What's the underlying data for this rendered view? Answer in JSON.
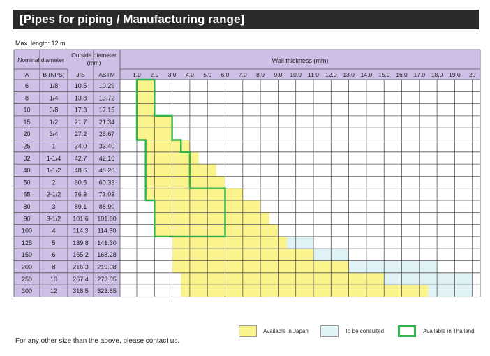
{
  "page": {
    "title": "[Pipes for piping / Manufacturing range]",
    "max_length": "Max. length: 12 m",
    "footnote": "For any other size than the above, please contact us."
  },
  "table": {
    "headers": {
      "nominal_diameter": "Nominal diameter",
      "outside_diameter_line1": "Outside diameter",
      "outside_diameter_line2": "(mm)",
      "wall_thickness": "Wall thickness (mm)",
      "col_a": "A",
      "col_b": "B (NPS)",
      "col_jis": "JIS",
      "col_astm": "ASTM"
    },
    "thickness_ticks": [
      "1.0",
      "2.0",
      "3.0",
      "4.0",
      "5.0",
      "6.0",
      "7.0",
      "8.0",
      "9.0",
      "10.0",
      "11.0",
      "12.0",
      "13.0",
      "14.0",
      "15.0",
      "16.0",
      "17.0",
      "18.0",
      "19.0",
      "20"
    ],
    "rows": [
      {
        "a": "6",
        "b": "1/8",
        "jis": "10.5",
        "astm": "10.29",
        "japan": [
          1.0,
          2.0
        ],
        "consult": null,
        "thailand": [
          1.0,
          2.0
        ]
      },
      {
        "a": "8",
        "b": "1/4",
        "jis": "13.8",
        "astm": "13.72",
        "japan": [
          1.0,
          2.0
        ],
        "consult": null,
        "thailand": [
          1.0,
          2.0
        ]
      },
      {
        "a": "10",
        "b": "3/8",
        "jis": "17.3",
        "astm": "17.15",
        "japan": [
          1.0,
          2.0
        ],
        "consult": null,
        "thailand": [
          1.0,
          2.0
        ]
      },
      {
        "a": "15",
        "b": "1/2",
        "jis": "21.7",
        "astm": "21.34",
        "japan": [
          1.0,
          3.0
        ],
        "consult": null,
        "thailand": [
          1.0,
          3.0
        ]
      },
      {
        "a": "20",
        "b": "3/4",
        "jis": "27.2",
        "astm": "26.67",
        "japan": [
          1.0,
          3.0
        ],
        "consult": null,
        "thailand": [
          1.0,
          3.0
        ]
      },
      {
        "a": "25",
        "b": "1",
        "jis": "34.0",
        "astm": "33.40",
        "japan": [
          1.5,
          4.0
        ],
        "consult": null,
        "thailand": [
          1.5,
          3.5
        ]
      },
      {
        "a": "32",
        "b": "1-1/4",
        "jis": "42.7",
        "astm": "42.16",
        "japan": [
          1.5,
          4.5
        ],
        "consult": null,
        "thailand": [
          1.5,
          4.0
        ]
      },
      {
        "a": "40",
        "b": "1-1/2",
        "jis": "48.6",
        "astm": "48.26",
        "japan": [
          1.5,
          5.5
        ],
        "consult": null,
        "thailand": [
          1.5,
          4.0
        ]
      },
      {
        "a": "50",
        "b": "2",
        "jis": "60.5",
        "astm": "60.33",
        "japan": [
          1.5,
          6.0
        ],
        "consult": null,
        "thailand": [
          1.5,
          4.0
        ]
      },
      {
        "a": "65",
        "b": "2-1/2",
        "jis": "76.3",
        "astm": "73.03",
        "japan": [
          1.5,
          7.0
        ],
        "consult": null,
        "thailand": [
          1.5,
          6.0
        ]
      },
      {
        "a": "80",
        "b": "3",
        "jis": "89.1",
        "astm": "88.90",
        "japan": [
          2.0,
          8.0
        ],
        "consult": null,
        "thailand": [
          2.0,
          6.0
        ]
      },
      {
        "a": "90",
        "b": "3-1/2",
        "jis": "101.6",
        "astm": "101.60",
        "japan": [
          2.0,
          8.5
        ],
        "consult": null,
        "thailand": [
          2.0,
          6.0
        ]
      },
      {
        "a": "100",
        "b": "4",
        "jis": "114.3",
        "astm": "114.30",
        "japan": [
          2.0,
          9.0
        ],
        "consult": null,
        "thailand": [
          2.0,
          6.0
        ]
      },
      {
        "a": "125",
        "b": "5",
        "jis": "139.8",
        "astm": "141.30",
        "japan": [
          3.0,
          9.5
        ],
        "consult": [
          9.5,
          11.0
        ],
        "thailand": null
      },
      {
        "a": "150",
        "b": "6",
        "jis": "165.2",
        "astm": "168.28",
        "japan": [
          3.0,
          11.0
        ],
        "consult": [
          11.0,
          13.0
        ],
        "thailand": null
      },
      {
        "a": "200",
        "b": "8",
        "jis": "216.3",
        "astm": "219.08",
        "japan": [
          3.0,
          13.0
        ],
        "consult": [
          13.0,
          18.0
        ],
        "thailand": null
      },
      {
        "a": "250",
        "b": "10",
        "jis": "267.4",
        "astm": "273.05",
        "japan": [
          3.5,
          15.0
        ],
        "consult": [
          15.0,
          20.0
        ],
        "thailand": null
      },
      {
        "a": "300",
        "b": "12",
        "jis": "318.5",
        "astm": "323.85",
        "japan": [
          3.5,
          17.5
        ],
        "consult": [
          17.5,
          20.0
        ],
        "thailand": null
      }
    ]
  },
  "legend": {
    "japan_label": "Available in Japan",
    "consult_label": "To be consulted",
    "thailand_label": "Available in Thailand"
  },
  "colors": {
    "header_bg": "#cdbfe6",
    "japan": "#fbf38c",
    "consult": "#dff2f6",
    "thailand_border": "#2fb34d",
    "grid": "#555555",
    "title_bg": "#2b2b2b"
  }
}
